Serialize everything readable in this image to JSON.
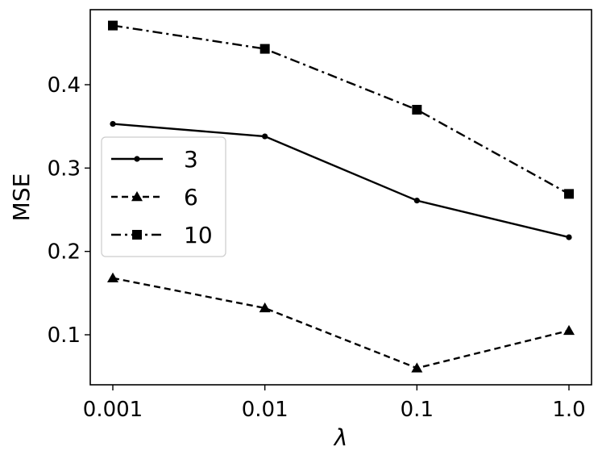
{
  "chart_data": {
    "type": "line",
    "categories": [
      "0.001",
      "0.01",
      "0.1",
      "1.0"
    ],
    "xlabel": "λ",
    "ylabel": "MSE",
    "ylim": [
      0.04,
      0.49
    ],
    "yticks": [
      "0.1",
      "0.2",
      "0.3",
      "0.4"
    ],
    "ytick_values": [
      0.1,
      0.2,
      0.3,
      0.4
    ],
    "grid": false,
    "legend": "center-left",
    "series": [
      {
        "name": "3",
        "values": [
          0.353,
          0.338,
          0.261,
          0.217
        ],
        "marker": "circle",
        "linestyle": "solid"
      },
      {
        "name": "6",
        "values": [
          0.168,
          0.132,
          0.06,
          0.105
        ],
        "marker": "triangle",
        "linestyle": "dashed"
      },
      {
        "name": "10",
        "values": [
          0.471,
          0.443,
          0.37,
          0.269
        ],
        "marker": "square",
        "linestyle": "dashdot"
      }
    ]
  }
}
